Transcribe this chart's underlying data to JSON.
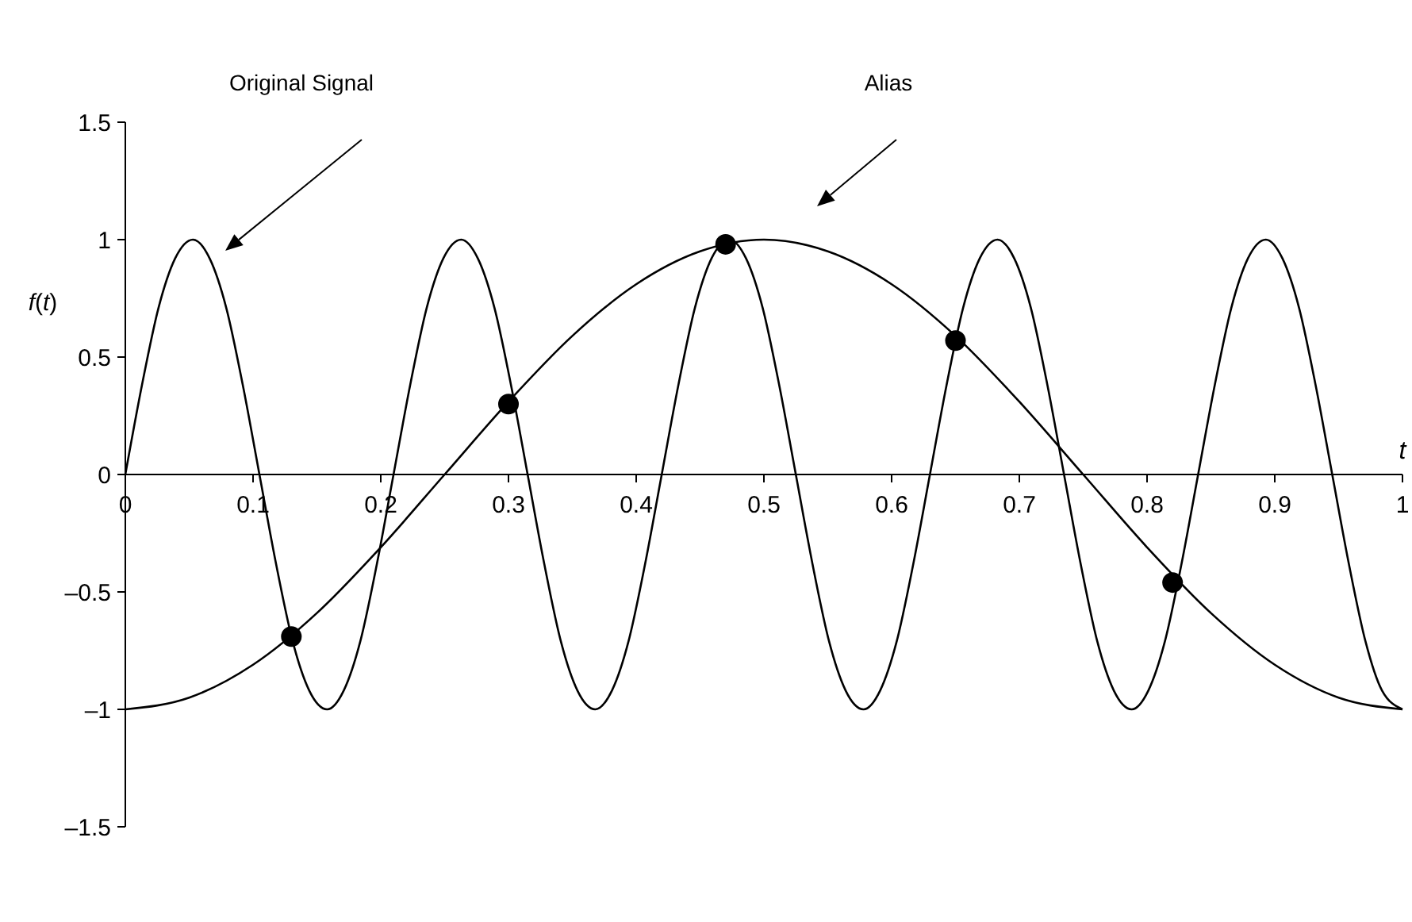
{
  "chart_data": {
    "type": "line",
    "xlabel": "t",
    "ylabel": "f(t)",
    "xlim": [
      0,
      1
    ],
    "xticks": [
      0,
      0.1,
      0.2,
      0.3,
      0.4,
      0.5,
      0.6,
      0.7,
      0.8,
      0.9,
      1
    ],
    "ylim": [
      -1.5,
      1.5
    ],
    "yticks": [
      {
        "value": -1.5,
        "label": "–1.5"
      },
      {
        "value": -1,
        "label": "–1"
      },
      {
        "value": -0.5,
        "label": "–0.5"
      },
      0,
      0.5,
      1,
      1.5
    ],
    "marker": "none",
    "annotations": [
      "Original Signal",
      "Alias"
    ],
    "series": [
      {
        "color": "#000000",
        "x": [
          0,
          0.013,
          0.026,
          0.039,
          0.053,
          0.066,
          0.079,
          0.092,
          0.105,
          0.118,
          0.131,
          0.144,
          0.158,
          0.171,
          0.184,
          0.197,
          0.21,
          0.223,
          0.236,
          0.249,
          0.263,
          0.276,
          0.289,
          0.302,
          0.315,
          0.328,
          0.341,
          0.354,
          0.368,
          0.381,
          0.394,
          0.407,
          0.42,
          0.433,
          0.446,
          0.459,
          0.473,
          0.486,
          0.499,
          0.512,
          0.525,
          0.538,
          0.551,
          0.564,
          0.578,
          0.591,
          0.604,
          0.617,
          0.63,
          0.643,
          0.656,
          0.669,
          0.683,
          0.696,
          0.709,
          0.722,
          0.735,
          0.748,
          0.761,
          0.774,
          0.788,
          0.801,
          0.814,
          0.827,
          0.84,
          0.853,
          0.866,
          0.879,
          0.893,
          0.906,
          0.919,
          0.932,
          0.945,
          0.958,
          0.971,
          0.984,
          1
        ],
        "values": [
          0,
          0.38,
          0.71,
          0.92,
          1,
          0.92,
          0.71,
          0.38,
          0,
          -0.38,
          -0.71,
          -0.92,
          -1,
          -0.92,
          -0.71,
          -0.38,
          0,
          0.38,
          0.71,
          0.92,
          1,
          0.92,
          0.71,
          0.38,
          0,
          -0.38,
          -0.71,
          -0.92,
          -1,
          -0.92,
          -0.71,
          -0.38,
          0,
          0.38,
          0.71,
          0.92,
          1,
          0.92,
          0.71,
          0.38,
          0,
          -0.38,
          -0.71,
          -0.92,
          -1,
          -0.92,
          -0.71,
          -0.38,
          0,
          0.38,
          0.71,
          0.92,
          1,
          0.92,
          0.71,
          0.38,
          0,
          -0.38,
          -0.71,
          -0.92,
          -1,
          -0.92,
          -0.71,
          -0.38,
          0,
          0.38,
          0.71,
          0.92,
          1,
          0.92,
          0.71,
          0.38,
          0,
          -0.38,
          -0.71,
          -0.92,
          -1
        ]
      },
      {
        "color": "#000000",
        "x": [
          0,
          0.05,
          0.1,
          0.15,
          0.2,
          0.25,
          0.3,
          0.35,
          0.4,
          0.45,
          0.5,
          0.55,
          0.6,
          0.65,
          0.7,
          0.75,
          0.8,
          0.85,
          0.9,
          0.95,
          1
        ],
        "values": [
          -1,
          -0.95,
          -0.81,
          -0.59,
          -0.31,
          0,
          0.31,
          0.59,
          0.81,
          0.95,
          1,
          0.95,
          0.81,
          0.59,
          0.31,
          0,
          -0.31,
          -0.59,
          -0.81,
          -0.95,
          -1
        ]
      },
      {
        "type": "scatter",
        "color": "#000000",
        "marker": "circle",
        "x": [
          0.13,
          0.3,
          0.47,
          0.65,
          0.82
        ],
        "values": [
          -0.69,
          0.3,
          0.98,
          0.57,
          -0.46
        ]
      }
    ]
  }
}
